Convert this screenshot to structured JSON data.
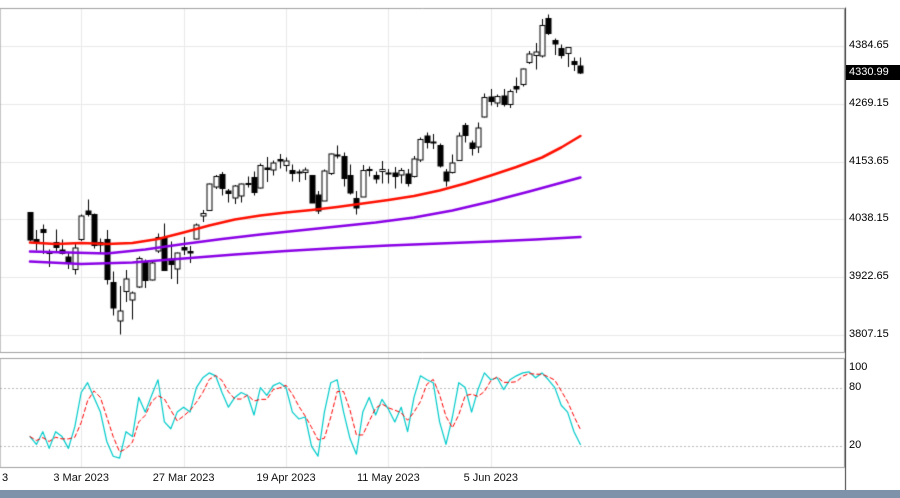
{
  "chart_data": {
    "type": "candlestick",
    "ylim_main": [
      3773,
      4461
    ],
    "price_ticks": [
      "4384.65",
      "4269.15",
      "4153.65",
      "4038.15",
      "3922.65",
      "3807.15"
    ],
    "last_price_label": "4330.99",
    "last_price_value": 4330.99,
    "x_ticks": [
      [
        8,
        "3 Mar 2023"
      ],
      [
        24,
        "27 Mar 2023"
      ],
      [
        40,
        "19 Apr 2023"
      ],
      [
        56,
        "11 May 2023"
      ],
      [
        72,
        "5 Jun 2023"
      ]
    ],
    "edge_label": "3",
    "candles": [
      [
        4052,
        4052,
        3995,
        3997
      ],
      [
        3998,
        4017,
        3976,
        3991
      ],
      [
        4018,
        4028,
        3969,
        4012
      ],
      [
        3973,
        3978,
        3943,
        3970
      ],
      [
        3992,
        4018,
        3973,
        3982
      ],
      [
        3977,
        3998,
        3968,
        3970
      ],
      [
        3963,
        3971,
        3939,
        3951
      ],
      [
        3938,
        3990,
        3928,
        3981
      ],
      [
        3998,
        4048,
        3995,
        4045
      ],
      [
        4055,
        4078,
        4044,
        4048
      ],
      [
        4048,
        4050,
        3980,
        3986
      ],
      [
        3987,
        4000,
        3969,
        3992
      ],
      [
        3998,
        4017,
        3908,
        3918
      ],
      [
        3912,
        3934,
        3846,
        3861
      ],
      [
        3835,
        3905,
        3808,
        3855
      ],
      [
        3894,
        3937,
        3873,
        3919
      ],
      [
        3877,
        3894,
        3838,
        3891
      ],
      [
        3903,
        3964,
        3901,
        3960
      ],
      [
        3953,
        3958,
        3901,
        3916
      ],
      [
        3917,
        3956,
        3916,
        3951
      ],
      [
        3975,
        4010,
        3971,
        4002
      ],
      [
        4002,
        4030,
        3935,
        3936
      ],
      [
        3959,
        3994,
        3919,
        3948
      ],
      [
        3939,
        3972,
        3909,
        3971
      ],
      [
        3982,
        4003,
        3967,
        3977
      ],
      [
        3974,
        3985,
        3951,
        3971
      ],
      [
        3999,
        4030,
        3998,
        4027
      ],
      [
        4045,
        4057,
        4033,
        4050
      ],
      [
        4056,
        4110,
        4056,
        4109
      ],
      [
        4103,
        4127,
        4099,
        4124
      ],
      [
        4128,
        4133,
        4086,
        4100
      ],
      [
        4095,
        4099,
        4072,
        4090
      ],
      [
        4081,
        4107,
        4069,
        4105
      ],
      [
        4085,
        4110,
        4072,
        4109
      ],
      [
        4110,
        4124,
        4102,
        4108
      ],
      [
        4122,
        4134,
        4086,
        4092
      ],
      [
        4101,
        4150,
        4100,
        4146
      ],
      [
        4141,
        4163,
        4113,
        4138
      ],
      [
        4137,
        4156,
        4126,
        4151
      ],
      [
        4158,
        4169,
        4140,
        4155
      ],
      [
        4146,
        4162,
        4134,
        4155
      ],
      [
        4136,
        4148,
        4114,
        4130
      ],
      [
        4131,
        4138,
        4113,
        4133
      ],
      [
        4132,
        4142,
        4117,
        4137
      ],
      [
        4126,
        4127,
        4072,
        4071
      ],
      [
        4087,
        4095,
        4049,
        4055
      ],
      [
        4075,
        4138,
        4075,
        4135
      ],
      [
        4130,
        4170,
        4127,
        4169
      ],
      [
        4166,
        4186,
        4160,
        4167
      ],
      [
        4164,
        4172,
        4104,
        4120
      ],
      [
        4126,
        4148,
        4088,
        4091
      ],
      [
        4080,
        4095,
        4048,
        4061
      ],
      [
        4083,
        4147,
        4083,
        4136
      ],
      [
        4136,
        4144,
        4124,
        4138
      ],
      [
        4126,
        4134,
        4110,
        4119
      ],
      [
        4134,
        4155,
        4110,
        4138
      ],
      [
        4129,
        4139,
        4110,
        4131
      ],
      [
        4131,
        4143,
        4100,
        4124
      ],
      [
        4127,
        4141,
        4110,
        4136
      ],
      [
        4129,
        4139,
        4104,
        4110
      ],
      [
        4124,
        4165,
        4122,
        4159
      ],
      [
        4157,
        4202,
        4153,
        4198
      ],
      [
        4205,
        4212,
        4180,
        4192
      ],
      [
        4191,
        4209,
        4179,
        4193
      ],
      [
        4186,
        4190,
        4142,
        4145
      ],
      [
        4133,
        4139,
        4104,
        4115
      ],
      [
        4132,
        4168,
        4130,
        4151
      ],
      [
        4156,
        4212,
        4156,
        4205
      ],
      [
        4226,
        4231,
        4192,
        4206
      ],
      [
        4191,
        4196,
        4166,
        4180
      ],
      [
        4183,
        4232,
        4171,
        4221
      ],
      [
        4243,
        4290,
        4242,
        4282
      ],
      [
        4283,
        4299,
        4266,
        4274
      ],
      [
        4271,
        4288,
        4263,
        4284
      ],
      [
        4285,
        4299,
        4264,
        4268
      ],
      [
        4268,
        4298,
        4261,
        4294
      ],
      [
        4304,
        4322,
        4291,
        4299
      ],
      [
        4308,
        4340,
        4304,
        4339
      ],
      [
        4352,
        4375,
        4349,
        4369
      ],
      [
        4366,
        4391,
        4338,
        4373
      ],
      [
        4365,
        4439,
        4362,
        4426
      ],
      [
        4440,
        4448,
        4407,
        4410
      ],
      [
        4396,
        4400,
        4367,
        4389
      ],
      [
        4380,
        4388,
        4360,
        4366
      ],
      [
        4370,
        4382,
        4343,
        4382
      ],
      [
        4354,
        4362,
        4335,
        4348
      ],
      [
        4345,
        4362,
        4329,
        4331
      ]
    ],
    "overlays": [
      {
        "name": "ma-fast-red",
        "color": "#FF0F00",
        "width": 2.6,
        "points": [
          [
            0,
            3992
          ],
          [
            4,
            3989
          ],
          [
            8,
            3991
          ],
          [
            12,
            3989
          ],
          [
            16,
            3991
          ],
          [
            20,
            3999
          ],
          [
            24,
            4012
          ],
          [
            28,
            4026
          ],
          [
            32,
            4038
          ],
          [
            36,
            4046
          ],
          [
            40,
            4052
          ],
          [
            44,
            4057
          ],
          [
            48,
            4063
          ],
          [
            52,
            4070
          ],
          [
            56,
            4077
          ],
          [
            60,
            4085
          ],
          [
            64,
            4096
          ],
          [
            68,
            4110
          ],
          [
            72,
            4126
          ],
          [
            76,
            4143
          ],
          [
            80,
            4162
          ],
          [
            83,
            4182
          ],
          [
            86,
            4205
          ]
        ]
      },
      {
        "name": "ma-mid-purple",
        "color": "#8A00E6",
        "width": 2.6,
        "points": [
          [
            0,
            3974
          ],
          [
            6,
            3972
          ],
          [
            12,
            3970
          ],
          [
            18,
            3978
          ],
          [
            24,
            3989
          ],
          [
            30,
            3999
          ],
          [
            36,
            4008
          ],
          [
            42,
            4016
          ],
          [
            48,
            4024
          ],
          [
            54,
            4032
          ],
          [
            60,
            4042
          ],
          [
            66,
            4056
          ],
          [
            72,
            4074
          ],
          [
            78,
            4094
          ],
          [
            82,
            4108
          ],
          [
            86,
            4122
          ]
        ]
      },
      {
        "name": "ma-slow-purple",
        "color": "#8A00E6",
        "width": 2.6,
        "points": [
          [
            0,
            3954
          ],
          [
            8,
            3949
          ],
          [
            16,
            3952
          ],
          [
            24,
            3960
          ],
          [
            32,
            3968
          ],
          [
            40,
            3975
          ],
          [
            48,
            3981
          ],
          [
            56,
            3986
          ],
          [
            64,
            3990
          ],
          [
            72,
            3994
          ],
          [
            79,
            3998
          ],
          [
            86,
            4003
          ]
        ]
      }
    ],
    "oscillator": {
      "type": "stochastic",
      "levels": [
        "100",
        "80",
        "20"
      ],
      "dotted_levels": [
        80,
        20
      ],
      "k_color": "#00CBCB",
      "d_color": "#FF0000",
      "d_smoothing": 3,
      "k": [
        30,
        22,
        35,
        18,
        35,
        30,
        18,
        40,
        75,
        85,
        70,
        55,
        25,
        10,
        8,
        35,
        30,
        70,
        55,
        72,
        88,
        45,
        38,
        55,
        60,
        55,
        80,
        90,
        95,
        92,
        75,
        60,
        70,
        75,
        72,
        52,
        80,
        72,
        82,
        85,
        80,
        55,
        48,
        50,
        20,
        10,
        55,
        85,
        88,
        55,
        28,
        12,
        55,
        70,
        52,
        68,
        58,
        45,
        60,
        35,
        70,
        92,
        88,
        85,
        45,
        22,
        50,
        85,
        80,
        55,
        78,
        95,
        88,
        90,
        78,
        88,
        92,
        95,
        96,
        90,
        95,
        88,
        80,
        62,
        55,
        35,
        22
      ]
    },
    "colors": {
      "background": "#FFFFFF",
      "grid": "#E9E9E9",
      "up_body": "#FFFFFF",
      "down_body": "#000000",
      "outline": "#000000",
      "border": "#A0A0A0",
      "axis_line": "#333333",
      "badge_bg": "#000000",
      "badge_text": "#FFFFFF",
      "bottom_bar": "#7E92A9"
    }
  }
}
